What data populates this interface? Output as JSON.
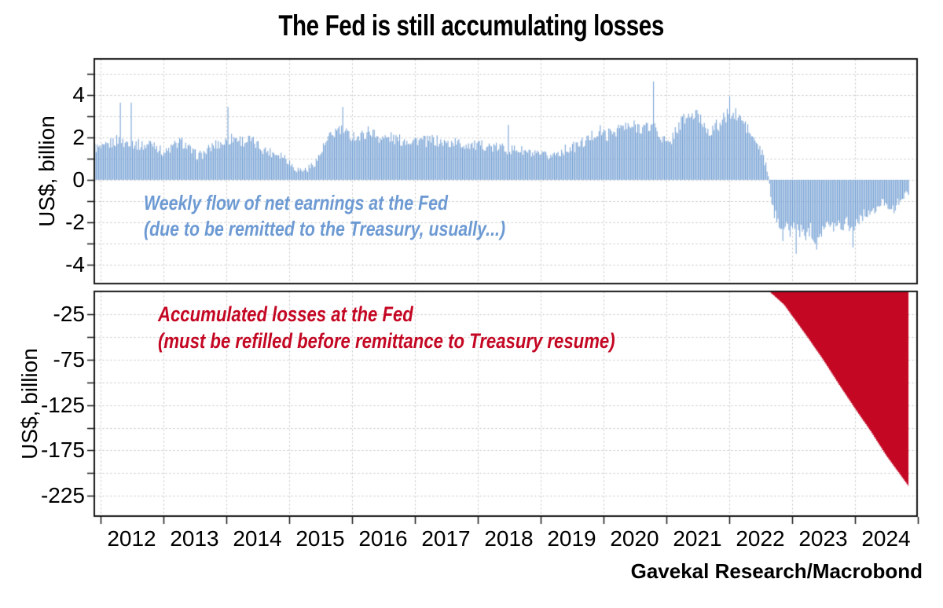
{
  "title": "The Fed is still accumulating losses",
  "source": "Gavekal Research/Macrobond",
  "colors": {
    "bar_blue": "#74a0d4",
    "annotation_blue": "#6d9ad3",
    "loss_red": "#c40723",
    "annotation_red": "#c40723",
    "grid": "#c5c5c5",
    "axis": "#161616",
    "background": "#ffffff"
  },
  "panels": {
    "top": {
      "axis_title": "US$, billion",
      "annotation": [
        "Weekly flow of net earnings at the Fed",
        "(due to be remitted to the Treasury, usually...)"
      ]
    },
    "bottom": {
      "axis_title": "US$, billion",
      "annotation": [
        "Accumulated losses at the Fed",
        "(must be refilled before remittance to Treasury resume)"
      ]
    }
  },
  "x_axis": {
    "boundary_tick_years": [
      2012,
      2013,
      2014,
      2015,
      2016,
      2017,
      2018,
      2019,
      2020,
      2021,
      2022,
      2023,
      2024,
      2025
    ],
    "year_labels": [
      "2012",
      "2013",
      "2014",
      "2015",
      "2016",
      "2017",
      "2018",
      "2019",
      "2020",
      "2021",
      "2022",
      "2023",
      "2024"
    ]
  },
  "chart_data": [
    {
      "type": "bar",
      "name": "Weekly flow of net earnings at the Fed",
      "ylabel": "US$, billion",
      "unit": "US$ billion per week",
      "ylim": [
        -4.91,
        5.72
      ],
      "ytick_labels": [
        {
          "v": 4,
          "label": "4"
        },
        {
          "v": 2,
          "label": "2"
        },
        {
          "v": 0,
          "label": "0"
        },
        {
          "v": -2,
          "label": "-2"
        },
        {
          "v": -4,
          "label": "-4"
        }
      ],
      "grid_values": [
        5,
        4,
        3,
        2,
        1,
        0,
        -1,
        -2,
        -3,
        -4
      ],
      "minor_tick_values": [
        5,
        3,
        1,
        -1,
        -3
      ],
      "x_start": 2011.91,
      "x_end": 2024.857,
      "bars_per_year": 52,
      "weekly_noise": 0.27,
      "anchors_monthly": [
        [
          2011.88,
          1.55
        ],
        [
          2011.96,
          1.5
        ],
        [
          2012.04,
          1.45
        ],
        [
          2012.12,
          1.65
        ],
        [
          2012.21,
          1.8
        ],
        [
          2012.29,
          1.9
        ],
        [
          2012.37,
          1.7
        ],
        [
          2012.46,
          1.85
        ],
        [
          2012.54,
          1.7
        ],
        [
          2012.62,
          1.65
        ],
        [
          2012.71,
          1.6
        ],
        [
          2012.79,
          1.75
        ],
        [
          2012.87,
          1.7
        ],
        [
          2012.96,
          1.35
        ],
        [
          2013.04,
          1.3
        ],
        [
          2013.12,
          1.5
        ],
        [
          2013.21,
          1.7
        ],
        [
          2013.29,
          1.8
        ],
        [
          2013.37,
          1.6
        ],
        [
          2013.46,
          1.3
        ],
        [
          2013.54,
          1.15
        ],
        [
          2013.62,
          1.2
        ],
        [
          2013.71,
          1.4
        ],
        [
          2013.79,
          1.6
        ],
        [
          2013.87,
          1.7
        ],
        [
          2013.96,
          1.75
        ],
        [
          2014.04,
          1.9
        ],
        [
          2014.12,
          2.0
        ],
        [
          2014.21,
          1.9
        ],
        [
          2014.29,
          1.8
        ],
        [
          2014.37,
          1.9
        ],
        [
          2014.46,
          1.7
        ],
        [
          2014.54,
          1.55
        ],
        [
          2014.62,
          1.4
        ],
        [
          2014.71,
          1.3
        ],
        [
          2014.79,
          1.25
        ],
        [
          2014.87,
          1.2
        ],
        [
          2014.96,
          1.0
        ],
        [
          2015.04,
          0.7
        ],
        [
          2015.12,
          0.5
        ],
        [
          2015.21,
          0.45
        ],
        [
          2015.29,
          0.5
        ],
        [
          2015.37,
          0.7
        ],
        [
          2015.46,
          1.0
        ],
        [
          2015.54,
          1.5
        ],
        [
          2015.62,
          1.9
        ],
        [
          2015.71,
          2.2
        ],
        [
          2015.79,
          2.4
        ],
        [
          2015.87,
          2.2
        ],
        [
          2015.96,
          2.1
        ],
        [
          2016.04,
          2.1
        ],
        [
          2016.12,
          2.0
        ],
        [
          2016.21,
          2.2
        ],
        [
          2016.29,
          2.35
        ],
        [
          2016.37,
          2.1
        ],
        [
          2016.46,
          2.0
        ],
        [
          2016.54,
          1.95
        ],
        [
          2016.62,
          2.0
        ],
        [
          2016.71,
          1.9
        ],
        [
          2016.79,
          1.85
        ],
        [
          2016.87,
          1.9
        ],
        [
          2016.96,
          1.85
        ],
        [
          2017.04,
          1.9
        ],
        [
          2017.12,
          1.85
        ],
        [
          2017.21,
          1.8
        ],
        [
          2017.29,
          1.9
        ],
        [
          2017.37,
          1.8
        ],
        [
          2017.46,
          1.75
        ],
        [
          2017.54,
          1.7
        ],
        [
          2017.62,
          1.8
        ],
        [
          2017.71,
          1.7
        ],
        [
          2017.79,
          1.65
        ],
        [
          2017.87,
          1.7
        ],
        [
          2017.96,
          1.6
        ],
        [
          2018.04,
          1.6
        ],
        [
          2018.12,
          1.65
        ],
        [
          2018.21,
          1.55
        ],
        [
          2018.29,
          1.5
        ],
        [
          2018.37,
          1.55
        ],
        [
          2018.46,
          1.45
        ],
        [
          2018.54,
          1.4
        ],
        [
          2018.62,
          1.45
        ],
        [
          2018.71,
          1.35
        ],
        [
          2018.79,
          1.3
        ],
        [
          2018.87,
          1.2
        ],
        [
          2018.96,
          1.15
        ],
        [
          2019.04,
          1.15
        ],
        [
          2019.12,
          1.1
        ],
        [
          2019.21,
          1.2
        ],
        [
          2019.29,
          1.3
        ],
        [
          2019.37,
          1.4
        ],
        [
          2019.46,
          1.5
        ],
        [
          2019.54,
          1.55
        ],
        [
          2019.62,
          1.7
        ],
        [
          2019.71,
          1.8
        ],
        [
          2019.79,
          2.0
        ],
        [
          2019.87,
          2.2
        ],
        [
          2019.96,
          2.3
        ],
        [
          2020.04,
          2.1
        ],
        [
          2020.12,
          2.2
        ],
        [
          2020.21,
          2.4
        ],
        [
          2020.29,
          2.5
        ],
        [
          2020.37,
          2.45
        ],
        [
          2020.46,
          2.5
        ],
        [
          2020.54,
          2.55
        ],
        [
          2020.62,
          2.5
        ],
        [
          2020.71,
          2.45
        ],
        [
          2020.79,
          2.6
        ],
        [
          2020.87,
          2.2
        ],
        [
          2020.96,
          1.9
        ],
        [
          2021.04,
          1.6
        ],
        [
          2021.12,
          2.2
        ],
        [
          2021.21,
          2.6
        ],
        [
          2021.29,
          2.9
        ],
        [
          2021.37,
          3.0
        ],
        [
          2021.46,
          3.05
        ],
        [
          2021.54,
          2.9
        ],
        [
          2021.62,
          2.5
        ],
        [
          2021.71,
          2.3
        ],
        [
          2021.79,
          2.5
        ],
        [
          2021.87,
          2.7
        ],
        [
          2021.96,
          3.0
        ],
        [
          2022.04,
          3.0
        ],
        [
          2022.12,
          3.05
        ],
        [
          2022.21,
          2.8
        ],
        [
          2022.29,
          2.4
        ],
        [
          2022.37,
          2.0
        ],
        [
          2022.46,
          1.6
        ],
        [
          2022.54,
          1.1
        ],
        [
          2022.6,
          0.5
        ],
        [
          2022.65,
          -0.5
        ],
        [
          2022.71,
          -1.6
        ],
        [
          2022.79,
          -2.0
        ],
        [
          2022.87,
          -2.2
        ],
        [
          2022.96,
          -2.4
        ],
        [
          2023.04,
          -2.2
        ],
        [
          2023.12,
          -2.4
        ],
        [
          2023.21,
          -2.6
        ],
        [
          2023.29,
          -2.3
        ],
        [
          2023.37,
          -2.8
        ],
        [
          2023.46,
          -2.4
        ],
        [
          2023.54,
          -2.1
        ],
        [
          2023.62,
          -2.3
        ],
        [
          2023.71,
          -2.0
        ],
        [
          2023.79,
          -2.2
        ],
        [
          2023.87,
          -1.9
        ],
        [
          2023.96,
          -2.4
        ],
        [
          2024.04,
          -1.9
        ],
        [
          2024.12,
          -1.7
        ],
        [
          2024.21,
          -1.5
        ],
        [
          2024.29,
          -1.6
        ],
        [
          2024.37,
          -1.3
        ],
        [
          2024.46,
          -1.0
        ],
        [
          2024.54,
          -1.2
        ],
        [
          2024.62,
          -1.5
        ],
        [
          2024.71,
          -0.9
        ],
        [
          2024.79,
          -0.7
        ],
        [
          2024.86,
          -0.8
        ]
      ],
      "spikes": [
        [
          2012.31,
          3.65
        ],
        [
          2012.49,
          3.65
        ],
        [
          2014.03,
          3.45
        ],
        [
          2015.86,
          3.45
        ],
        [
          2018.48,
          2.6
        ],
        [
          2020.8,
          4.65
        ],
        [
          2022.01,
          3.95
        ],
        [
          2022.86,
          -2.9
        ],
        [
          2023.07,
          -3.5
        ],
        [
          2023.4,
          -3.3
        ],
        [
          2023.97,
          -3.2
        ]
      ]
    },
    {
      "type": "area",
      "name": "Accumulated losses at the Fed",
      "ylabel": "US$, billion",
      "unit": "US$ billion, cumulative",
      "ylim": [
        -247.2,
        0
      ],
      "ytick_labels": [
        {
          "v": -25,
          "label": "-25"
        },
        {
          "v": -75,
          "label": "-75"
        },
        {
          "v": -125,
          "label": "-125"
        },
        {
          "v": -175,
          "label": "-175"
        },
        {
          "v": -225,
          "label": "-225"
        }
      ],
      "grid_values": [
        -25,
        -50,
        -75,
        -100,
        -125,
        -150,
        -175,
        -200,
        -225
      ],
      "minor_tick_values": [
        -50,
        -100,
        -150,
        -200
      ],
      "x_start": 2022.633,
      "x_end": 2024.857,
      "keypoints": [
        [
          2022.633,
          0
        ],
        [
          2022.75,
          -7
        ],
        [
          2022.875,
          -15
        ],
        [
          2023.0,
          -27
        ],
        [
          2023.25,
          -51
        ],
        [
          2023.5,
          -76
        ],
        [
          2023.75,
          -103
        ],
        [
          2024.0,
          -129
        ],
        [
          2024.25,
          -154
        ],
        [
          2024.5,
          -181
        ],
        [
          2024.7,
          -200
        ],
        [
          2024.857,
          -215
        ]
      ]
    }
  ]
}
